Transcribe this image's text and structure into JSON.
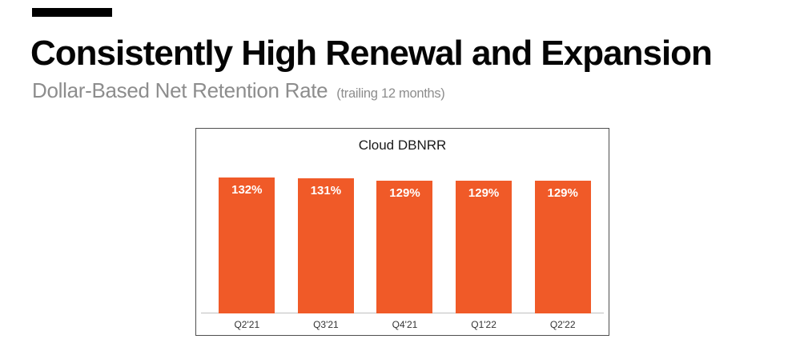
{
  "slide": {
    "title": "Consistently High Renewal and Expansion",
    "subtitle": "Dollar-Based Net Retention Rate",
    "subtitle_note": "(trailing 12 months)"
  },
  "chart_data": {
    "type": "bar",
    "title": "Cloud DBNRR",
    "categories": [
      "Q2'21",
      "Q3'21",
      "Q4'21",
      "Q1'22",
      "Q2'22"
    ],
    "values": [
      132,
      131,
      129,
      129,
      129
    ],
    "unit": "%",
    "xlabel": "",
    "ylabel": "",
    "ylim": [
      0,
      135
    ],
    "grid": false,
    "legend": "none",
    "data_labels": "inside-top, white bold",
    "bar_color": "#F05A28",
    "label_color": "#FFFFFF",
    "axis_line_color": "#BFBFBF",
    "border_color": "#4F4F4F"
  }
}
